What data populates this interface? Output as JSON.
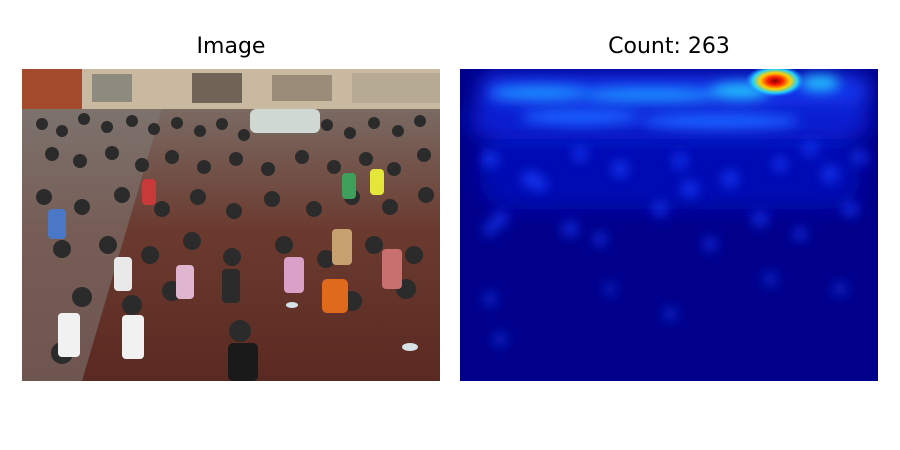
{
  "panels": {
    "left": {
      "title": "Image"
    },
    "right": {
      "title": "Count: 263"
    }
  },
  "colors": {
    "heatmap_low": "#00008b",
    "heatmap_mid": "#1e6cff",
    "heatmap_high": "#ff2000",
    "pavement": "#5a2a22",
    "storefronts": "#c9b9a0"
  }
}
